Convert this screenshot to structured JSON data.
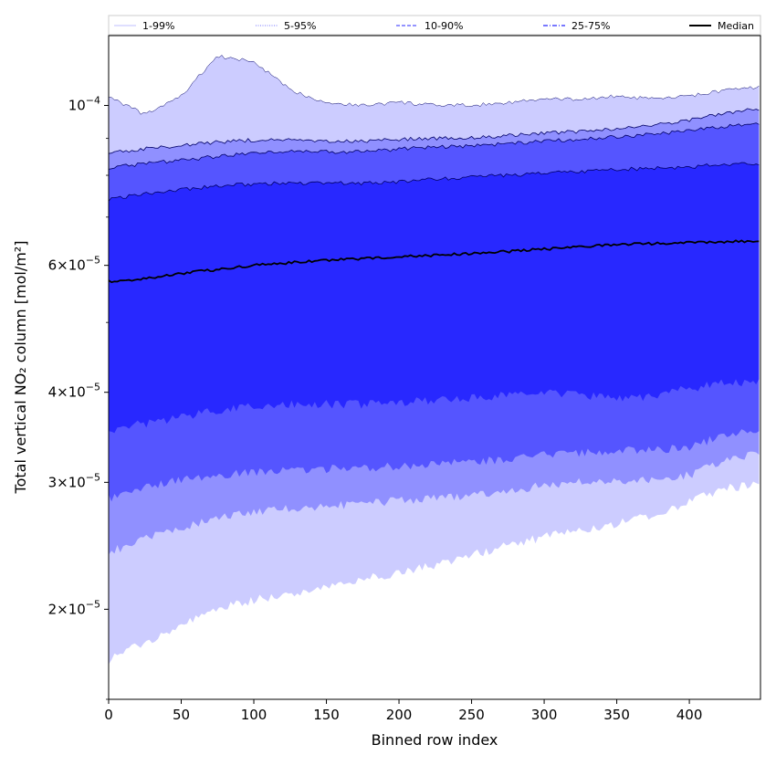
{
  "chart_data": {
    "type": "area",
    "title": "",
    "xlabel": "Binned row index",
    "ylabel": "Total vertical NO₂ column [mol/m²]",
    "xlim": [
      0,
      449
    ],
    "ylim": [
      1.5e-05,
      0.000125
    ],
    "yscale": "log",
    "grid": false,
    "legend_position": "top",
    "x_ticks": [
      0,
      50,
      100,
      150,
      200,
      250,
      300,
      350,
      400
    ],
    "y_ticks": [
      {
        "value": 2e-05,
        "mantissa": "2",
        "exponent": "−5"
      },
      {
        "value": 3e-05,
        "mantissa": "3",
        "exponent": "−5"
      },
      {
        "value": 4e-05,
        "mantissa": "4",
        "exponent": "−5"
      },
      {
        "value": 6e-05,
        "mantissa": "6",
        "exponent": "−5"
      },
      {
        "value": 0.0001,
        "mantissa": "10",
        "exponent": "−4"
      }
    ],
    "x": [
      0,
      25,
      50,
      75,
      100,
      125,
      150,
      175,
      200,
      225,
      250,
      275,
      300,
      325,
      350,
      375,
      400,
      425,
      449
    ],
    "bands": [
      {
        "name": "1-99%",
        "color": "#ccccff",
        "lower": [
          1.7e-05,
          1.8e-05,
          1.9e-05,
          2e-05,
          2.06e-05,
          2.1e-05,
          2.15e-05,
          2.2e-05,
          2.25e-05,
          2.3e-05,
          2.38e-05,
          2.45e-05,
          2.52e-05,
          2.58e-05,
          2.63e-05,
          2.7e-05,
          2.82e-05,
          2.95e-05,
          2.97e-05
        ],
        "upper": [
          0.000103,
          9.7e-05,
          0.000103,
          0.000117,
          0.000115,
          0.000105,
          0.000101,
          0.0001,
          0.000101,
          0.0001,
          0.0001,
          0.000101,
          0.000102,
          0.000102,
          0.000103,
          0.000102,
          0.000103,
          0.000105,
          0.000106
        ]
      },
      {
        "name": "5-95%",
        "color": "#9090ff",
        "lower": [
          2.4e-05,
          2.5e-05,
          2.6e-05,
          2.68e-05,
          2.73e-05,
          2.76e-05,
          2.78e-05,
          2.8e-05,
          2.83e-05,
          2.85e-05,
          2.88e-05,
          2.92e-05,
          2.97e-05,
          3e-05,
          3.02e-05,
          3.03e-05,
          3.07e-05,
          3.22e-05,
          3.3e-05
        ],
        "upper": [
          8.6e-05,
          8.7e-05,
          8.8e-05,
          8.9e-05,
          8.95e-05,
          8.95e-05,
          8.9e-05,
          8.92e-05,
          8.98e-05,
          9e-05,
          9.03e-05,
          9.08e-05,
          9.15e-05,
          9.2e-05,
          9.28e-05,
          9.38e-05,
          9.55e-05,
          9.75e-05,
          9.9e-05
        ]
      },
      {
        "name": "10-90%",
        "color": "#5555ff",
        "lower": [
          2.85e-05,
          2.95e-05,
          3.02e-05,
          3.07e-05,
          3.1e-05,
          3.12e-05,
          3.13e-05,
          3.14e-05,
          3.16e-05,
          3.18e-05,
          3.2e-05,
          3.23e-05,
          3.28e-05,
          3.3e-05,
          3.32e-05,
          3.32e-05,
          3.35e-05,
          3.5e-05,
          3.55e-05
        ],
        "upper": [
          8.2e-05,
          8.3e-05,
          8.4e-05,
          8.5e-05,
          8.6e-05,
          8.65e-05,
          8.62e-05,
          8.63e-05,
          8.7e-05,
          8.75e-05,
          8.78e-05,
          8.85e-05,
          8.92e-05,
          8.98e-05,
          9.05e-05,
          9.12e-05,
          9.22e-05,
          9.35e-05,
          9.45e-05
        ]
      },
      {
        "name": "25-75%",
        "color": "#2828ff",
        "lower": [
          3.55e-05,
          3.62e-05,
          3.7e-05,
          3.78e-05,
          3.82e-05,
          3.85e-05,
          3.85e-05,
          3.85e-05,
          3.87e-05,
          3.9e-05,
          3.93e-05,
          3.97e-05,
          4e-05,
          3.97e-05,
          3.92e-05,
          3.95e-05,
          4.05e-05,
          4.12e-05,
          4.15e-05
        ],
        "upper": [
          7.4e-05,
          7.55e-05,
          7.65e-05,
          7.73e-05,
          7.78e-05,
          7.8e-05,
          7.8e-05,
          7.8e-05,
          7.84e-05,
          7.9e-05,
          7.95e-05,
          8e-05,
          8.05e-05,
          8.1e-05,
          8.15e-05,
          8.18e-05,
          8.22e-05,
          8.28e-05,
          8.32e-05
        ]
      }
    ],
    "median": {
      "name": "Median",
      "color": "#000000",
      "values": [
        5.7e-05,
        5.75e-05,
        5.85e-05,
        5.92e-05,
        6e-05,
        6.05e-05,
        6.1e-05,
        6.13e-05,
        6.17e-05,
        6.2e-05,
        6.23e-05,
        6.27e-05,
        6.32e-05,
        6.37e-05,
        6.42e-05,
        6.43e-05,
        6.45e-05,
        6.47e-05,
        6.48e-05
      ]
    },
    "legend": [
      {
        "label": "1-99%",
        "color": "#ccccff",
        "dash": "solid"
      },
      {
        "label": "5-95%",
        "color": "#9090ff",
        "dash": "dotted"
      },
      {
        "label": "10-90%",
        "color": "#5555ff",
        "dash": "dashed"
      },
      {
        "label": "25-75%",
        "color": "#2828ff",
        "dash": "dashdot"
      },
      {
        "label": "Median",
        "color": "#000000",
        "dash": "solid"
      }
    ]
  }
}
